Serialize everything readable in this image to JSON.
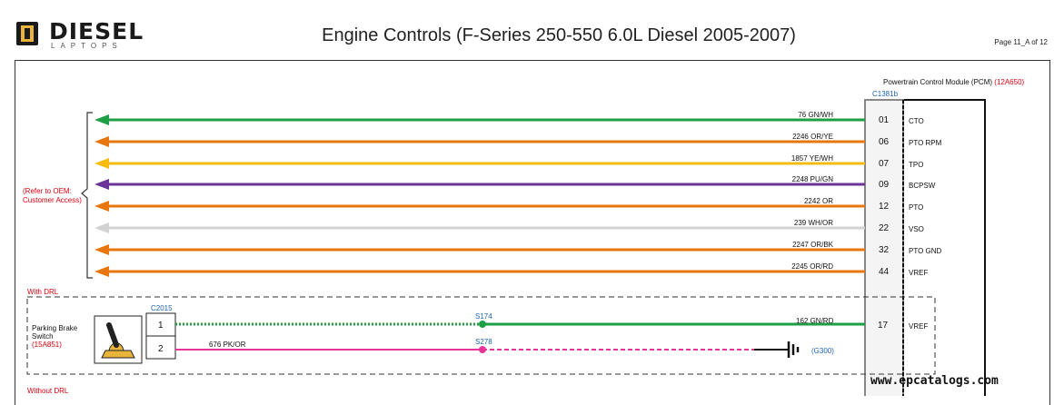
{
  "header": {
    "logo_word": "DIESEL",
    "logo_sub": "LAPTOPS",
    "title": "Engine Controls (F-Series 250-550 6.0L Diesel 2005-2007)",
    "page": "Page 11_A of 12"
  },
  "module": {
    "name": "Powertrain Control Module (PCM)",
    "ref": "(12A650)",
    "connector": "C1381b"
  },
  "bracket_label": [
    "(Refer to OEM:",
    "Customer Access)"
  ],
  "wires": [
    {
      "circuit": "76 GN/WH",
      "pin": "01",
      "signal": "CTO",
      "color": "#1e9e45"
    },
    {
      "circuit": "2246 OR/YE",
      "pin": "06",
      "signal": "PTO RPM",
      "color": "#e8760f"
    },
    {
      "circuit": "1857 YE/WH",
      "pin": "07",
      "signal": "TPO",
      "color": "#f5bb0f"
    },
    {
      "circuit": "2248 PU/GN",
      "pin": "09",
      "signal": "BCPSW",
      "color": "#6a3596"
    },
    {
      "circuit": "2242 OR",
      "pin": "12",
      "signal": "PTO",
      "color": "#e8760f"
    },
    {
      "circuit": "239 WH/OR",
      "pin": "22",
      "signal": "VSO",
      "color": "#d2d2d2"
    },
    {
      "circuit": "2247 OR/BK",
      "pin": "32",
      "signal": "PTO GND",
      "color": "#e8760f"
    },
    {
      "circuit": "2245 OR/RD",
      "pin": "44",
      "signal": "VREF",
      "color": "#e8760f"
    }
  ],
  "drl": {
    "with_label": "With DRL",
    "without_label": "Without DRL",
    "switch_name": [
      "Parking Brake",
      "Switch"
    ],
    "switch_ref": "(15A851)",
    "connector": "C2015",
    "pins": [
      "1",
      "2"
    ],
    "splice1": "S174",
    "splice2": "S278",
    "wire1_circuit": "162 GN/RD",
    "wire1_pin": "17",
    "wire1_signal": "VREF",
    "wire2_circuit": "676 PK/OR",
    "ground": "(G300)",
    "wire1_color": "#1e9e45",
    "wire2_color": "#e8359a"
  },
  "watermark": "www.epcatalogs.com"
}
